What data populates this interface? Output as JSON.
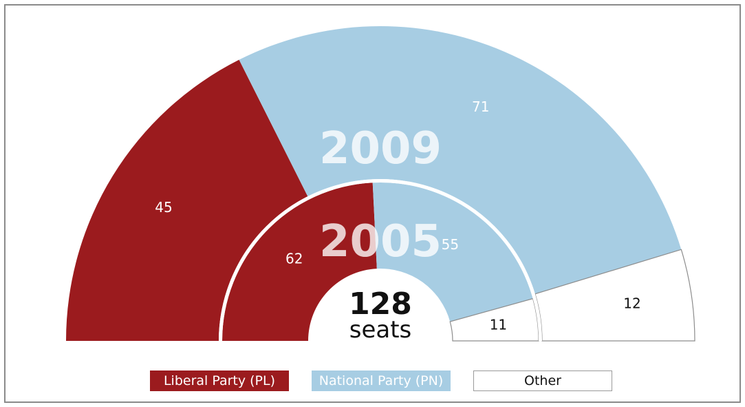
{
  "chart_data": {
    "type": "pie",
    "subtype": "parliament half-donut",
    "total_seats": "128",
    "center_unit": "seats",
    "rings": [
      {
        "year": "2009",
        "slices": [
          {
            "party": "Liberal Party (PL)",
            "seats": 45
          },
          {
            "party": "National Party (PN)",
            "seats": 71
          },
          {
            "party": "Other",
            "seats": 12
          }
        ]
      },
      {
        "year": "2005",
        "slices": [
          {
            "party": "Liberal Party (PL)",
            "seats": 62
          },
          {
            "party": "National Party (PN)",
            "seats": 55
          },
          {
            "party": "Other",
            "seats": 11
          }
        ]
      }
    ],
    "legend": [
      {
        "label": "Liberal Party (PL)",
        "color": "#9b1b1e"
      },
      {
        "label": "National Party (PN)",
        "color": "#a7cde3"
      },
      {
        "label": "Other",
        "color": "#ffffff"
      }
    ]
  }
}
